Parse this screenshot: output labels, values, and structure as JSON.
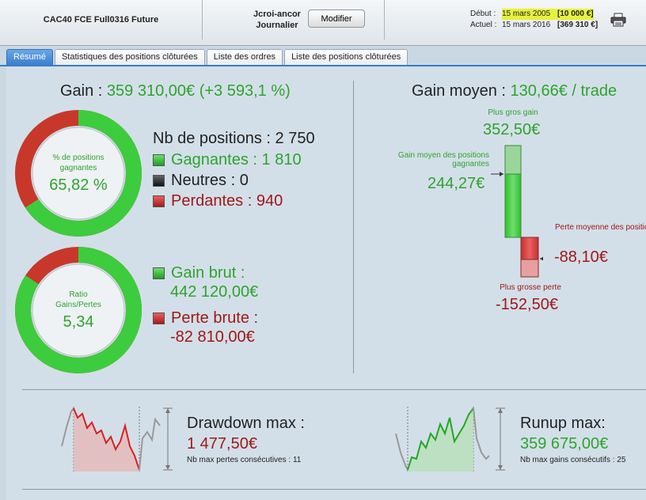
{
  "header": {
    "instrument": "CAC40 FCE Full0316 Future",
    "user": "Jcroi-ancor",
    "period": "Journalier",
    "modify_label": "Modifier",
    "start_label": "Début :",
    "start_date": "15 mars 2005",
    "start_amount": "[10 000 €]",
    "current_label": "Actuel :",
    "current_date": "15 mars 2016",
    "current_amount": "[369 310 €]",
    "print_icon": "printer-icon"
  },
  "tabs": [
    {
      "label": "Résumé",
      "active": true
    },
    {
      "label": "Statistiques des positions clôturées",
      "active": false
    },
    {
      "label": "Liste des ordres",
      "active": false
    },
    {
      "label": "Liste des positions clôturées",
      "active": false
    }
  ],
  "summary": {
    "gain_label": "Gain :",
    "gain_value": "359 310,00€ (+3 593,1 %)",
    "donut1_label": "% de positions gagnantes",
    "donut1_value": "65,82 %",
    "donut1_fraction": 0.6582,
    "nb_positions": "Nb de positions : 2 750",
    "winners": "Gagnantes : 1 810",
    "neutral": "Neutres : 0",
    "losers": "Perdantes : 940",
    "donut2_label": "Ratio Gains/Pertes",
    "donut2_value": "5,34",
    "donut2_fraction": 0.842,
    "gross_gain_label": "Gain brut :",
    "gross_gain_value": "442 120,00€",
    "gross_loss_label": "Perte brute :",
    "gross_loss_value": "-82 810,00€"
  },
  "average": {
    "title_label": "Gain moyen :",
    "title_value": "130,66€ / trade",
    "max_gain_label": "Plus gros gain",
    "max_gain_value": "352,50€",
    "avg_win_label": "Gain moyen des positions gagnantes",
    "avg_win_value": "244,27€",
    "avg_loss_label": "Perte moyenne des positions perdantes",
    "avg_loss_value": "-88,10€",
    "max_loss_label": "Plus grosse perte",
    "max_loss_value": "-152,50€"
  },
  "drawdown": {
    "title": "Drawdown max :",
    "value": "1 477,50€",
    "sub": "Nb max pertes consécutives : 11"
  },
  "runup": {
    "title": "Runup max:",
    "value": "359 675,00€",
    "sub": "Nb max gains consécutifs : 25"
  },
  "colors": {
    "green": "#2ea32e",
    "red": "#a01818",
    "tab_active": "#3a7ccc",
    "highlight": "#e6f23a"
  }
}
